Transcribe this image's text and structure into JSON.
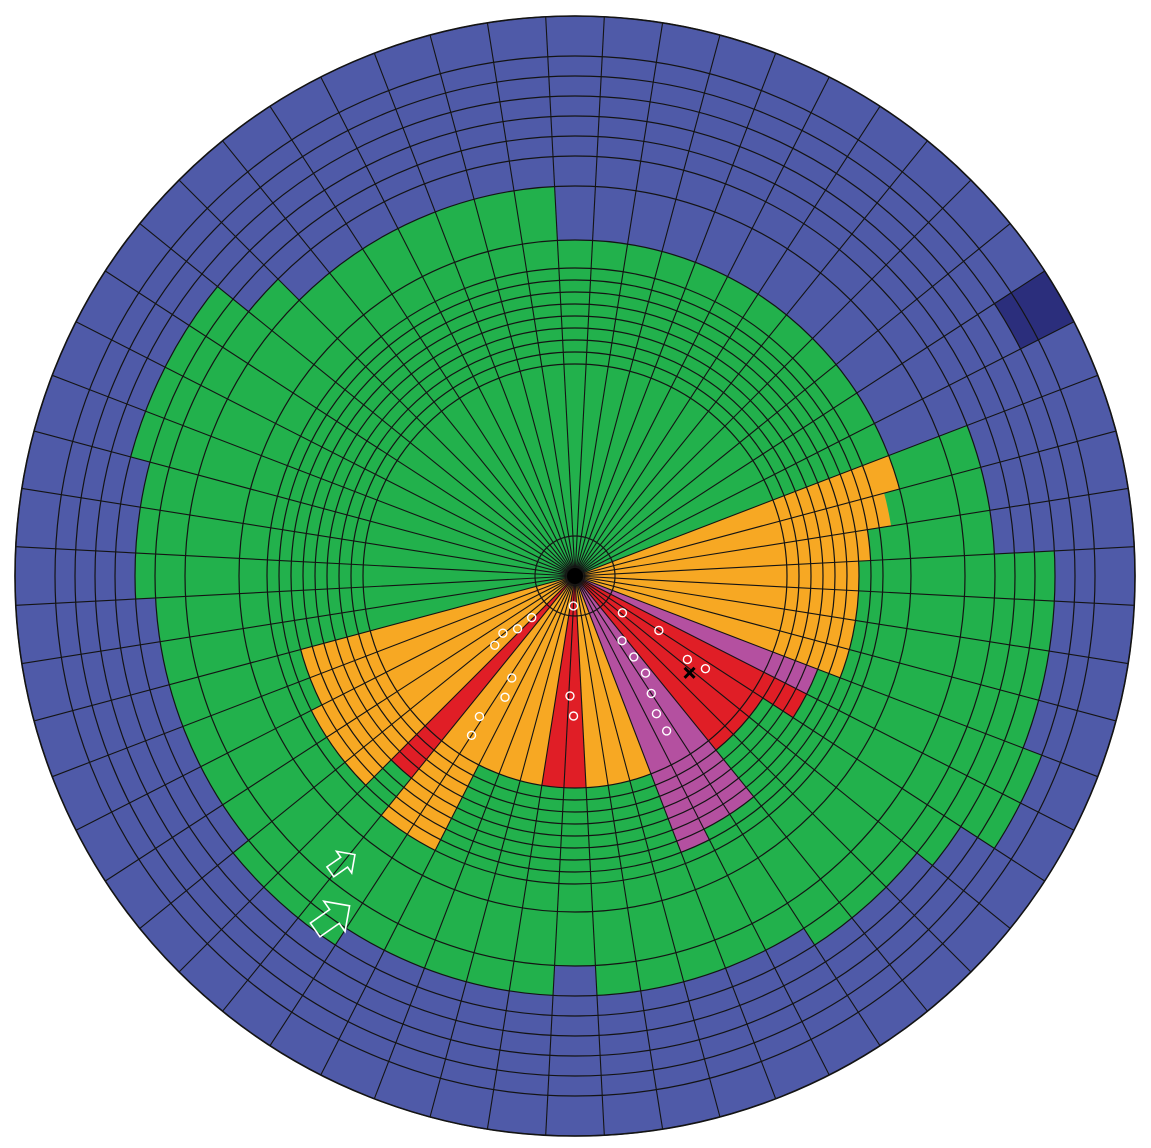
{
  "diagram": {
    "type": "polar-sector-grid",
    "sector_count": 60,
    "ring_boundaries": [
      0,
      40,
      212,
      224,
      236,
      248,
      260,
      272,
      284,
      296,
      308,
      336,
      390,
      420,
      440,
      460,
      480,
      500,
      520,
      560
    ],
    "colors": {
      "outer_blue": "#4F5AA8",
      "dark_blue": "#2B2E7C",
      "green": "#22B14C",
      "orange": "#F7A823",
      "magenta": "#B450A0",
      "red": "#E01E26",
      "grid_line": "#141414",
      "marker": "#FFFFFF"
    },
    "color_code_order": [
      "outer_blue",
      "green",
      "orange",
      "magenta",
      "red",
      "dark_blue"
    ],
    "outer_green_extent": [
      336,
      336,
      336,
      336,
      336,
      336,
      336,
      336,
      336,
      336,
      336,
      336,
      420,
      420,
      420,
      480,
      480,
      480,
      480,
      500,
      500,
      460,
      440,
      440,
      440,
      420,
      420,
      420,
      420,
      420,
      390,
      420,
      420,
      420,
      420,
      420,
      440,
      440,
      440,
      420,
      420,
      420,
      420,
      420,
      420,
      440,
      440,
      440,
      460,
      460,
      460,
      460,
      420,
      390,
      390,
      390,
      390,
      390,
      390,
      390
    ],
    "inner_bands": [
      {
        "code": 4,
        "outer_ring": 260,
        "sectors": [
          20
        ]
      },
      {
        "code": 4,
        "outer_ring": 224,
        "sectors": [
          21,
          22,
          23
        ]
      },
      {
        "code": 3,
        "outer_ring": 260,
        "sectors": [
          19
        ]
      },
      {
        "code": 3,
        "outer_ring": 284,
        "sectors": [
          24,
          25
        ]
      },
      {
        "code": 3,
        "outer_ring": 296,
        "sectors": [
          26
        ]
      },
      {
        "code": 2,
        "outer_ring": 212,
        "sectors": [
          27,
          28,
          29
        ]
      },
      {
        "code": 2,
        "outer_ring": 284,
        "sectors": [
          15,
          16,
          17,
          18
        ]
      },
      {
        "code": 2,
        "outer_ring": 296,
        "sectors": [
          14
        ]
      },
      {
        "code": 2,
        "outer_ring": 320,
        "sectors": [
          13
        ]
      },
      {
        "code": 2,
        "outer_ring": 336,
        "sectors": [
          12
        ]
      },
      {
        "code": 4,
        "outer_ring": 212,
        "sectors": [
          30,
          31
        ]
      },
      {
        "code": 2,
        "outer_ring": 212,
        "sectors": [
          32,
          33,
          34,
          35
        ]
      },
      {
        "code": 4,
        "outer_ring": 212,
        "sectors": [
          40
        ]
      },
      {
        "code": 4,
        "outer_ring": 260,
        "sectors": [
          36,
          37
        ]
      },
      {
        "code": 3,
        "outer_ring": 212,
        "sectors": [
          38,
          39
        ]
      },
      {
        "code": 2,
        "outer_ring": 308,
        "sectors": [
          35,
          36
        ]
      },
      {
        "code": 2,
        "outer_ring": 212,
        "sectors": [
          41,
          42
        ]
      },
      {
        "code": 2,
        "outer_ring": 296,
        "sectors": [
          38,
          39,
          40
        ]
      },
      {
        "code": 2,
        "outer_ring": 284,
        "sectors": [
          41,
          42
        ]
      }
    ],
    "special_cells": [
      {
        "code": 5,
        "sector": 10,
        "ring_inner": 500,
        "ring_outer": 560
      }
    ],
    "markers": {
      "white_circles": [
        {
          "sector": 24.5,
          "radius": 80
        },
        {
          "sector": 24.5,
          "radius": 100
        },
        {
          "sector": 24.5,
          "radius": 120
        },
        {
          "sector": 25.0,
          "radius": 140
        },
        {
          "sector": 25.4,
          "radius": 160
        },
        {
          "sector": 25.4,
          "radius": 180
        },
        {
          "sector": 21.8,
          "radius": 60
        },
        {
          "sector": 21.6,
          "radius": 140
        },
        {
          "sector": 21.0,
          "radius": 100
        },
        {
          "sector": 21.4,
          "radius": 160
        },
        {
          "sector": 31.0,
          "radius": 30
        },
        {
          "sector": 30.9,
          "radius": 120
        },
        {
          "sector": 30.6,
          "radius": 140
        },
        {
          "sector": 35.8,
          "radius": 120
        },
        {
          "sector": 35.5,
          "radius": 140
        },
        {
          "sector": 36.2,
          "radius": 170
        },
        {
          "sector": 36.0,
          "radius": 190
        },
        {
          "sector": 38.2,
          "radius": 60
        },
        {
          "sector": 38.4,
          "radius": 78
        },
        {
          "sector": 39.1,
          "radius": 92
        },
        {
          "sector": 38.7,
          "radius": 106
        }
      ],
      "cross": {
        "sector": 22.2,
        "radius": 150
      },
      "arrows": [
        {
          "sector": 37.0,
          "radius": 370,
          "size": 1.0
        },
        {
          "sector": 36.4,
          "radius": 420,
          "size": 1.4
        }
      ]
    }
  }
}
